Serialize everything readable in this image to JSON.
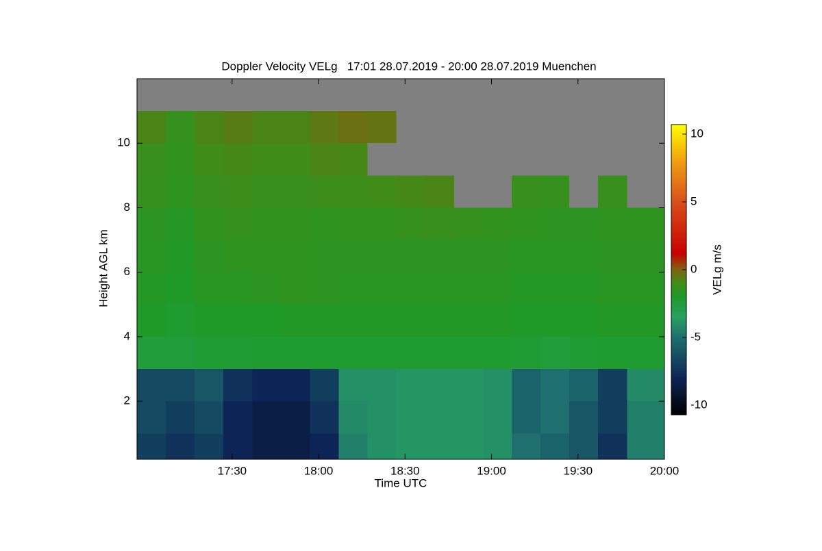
{
  "chart_data": {
    "type": "heatmap",
    "title": "Doppler Velocity VELg   17:01 28.07.2019 - 20:00 28.07.2019 Muenchen",
    "x_label": "Time UTC",
    "y_label": "Height AGL km",
    "colorbar_label": "VELg m/s",
    "xlim": [
      1017,
      1200
    ],
    "xticks": [
      {
        "value": 1050,
        "label": "17:30"
      },
      {
        "value": 1080,
        "label": "18:00"
      },
      {
        "value": 1110,
        "label": "18:30"
      },
      {
        "value": 1140,
        "label": "19:00"
      },
      {
        "value": 1170,
        "label": "19:30"
      },
      {
        "value": 1200,
        "label": "20:00"
      }
    ],
    "ylim": [
      0.2,
      12
    ],
    "yticks": [
      2,
      4,
      6,
      8,
      10
    ],
    "clim": [
      -10.7,
      10.7
    ],
    "cticks": [
      {
        "value": -10,
        "label": "-10"
      },
      {
        "value": -5,
        "label": "-5"
      },
      0,
      5,
      10
    ],
    "nodata_color": "#808080",
    "colorscale": [
      [
        -10.7,
        "#000000"
      ],
      [
        -8,
        "#0c2556"
      ],
      [
        -5,
        "#1e6f6e"
      ],
      [
        -3.5,
        "#27a060"
      ],
      [
        -2,
        "#1f9a28"
      ],
      [
        -1,
        "#3f8c18"
      ],
      [
        0,
        "#7d6410"
      ],
      [
        1.2,
        "#c80000"
      ],
      [
        5,
        "#d8501c"
      ],
      [
        8,
        "#f0a010"
      ],
      [
        10.7,
        "#ffff00"
      ]
    ],
    "xbins": [
      1017,
      1027,
      1037,
      1047,
      1057,
      1067,
      1077,
      1087,
      1097,
      1107,
      1117,
      1127,
      1137,
      1147,
      1157,
      1167,
      1177,
      1187,
      1200
    ],
    "ybins": [
      0.2,
      1,
      2,
      3,
      4,
      5,
      6,
      7,
      8,
      9,
      10,
      11,
      12
    ],
    "z": [
      [
        -7,
        -7.5,
        -7,
        -8,
        -8.5,
        -8.5,
        -8,
        -4.5,
        -4,
        -3.8,
        -3.8,
        -3.8,
        -4,
        -5,
        -5.5,
        -6,
        -7.5,
        -4.5
      ],
      [
        -6.5,
        -7,
        -6.5,
        -8,
        -8.5,
        -8.5,
        -7.5,
        -4.2,
        -4,
        -3.8,
        -3.8,
        -3.8,
        -4,
        -5.5,
        -5,
        -6,
        -7,
        -4.5
      ],
      [
        -6.5,
        -6.5,
        -6,
        -7.5,
        -8,
        -8,
        -7,
        -4,
        -4,
        -3.8,
        -3.8,
        -3.8,
        -4,
        -5.5,
        -5,
        -5.5,
        -7,
        -4.2
      ],
      [
        -2.5,
        -2.5,
        -2.3,
        -2.3,
        -2.2,
        -2.2,
        -2.2,
        -2.2,
        -2.2,
        -2.2,
        -2.2,
        -2.2,
        -2.2,
        -2.3,
        -2.5,
        -2.3,
        -2.2,
        -2.2
      ],
      [
        -2,
        -2.2,
        -2,
        -2,
        -2,
        -1.9,
        -1.9,
        -1.9,
        -1.9,
        -1.9,
        -1.9,
        -1.9,
        -1.9,
        -2,
        -2,
        -2,
        -1.9,
        -1.9
      ],
      [
        -1.8,
        -2,
        -1.7,
        -1.7,
        -1.6,
        -1.5,
        -1.6,
        -1.7,
        -1.7,
        -1.7,
        -1.7,
        -1.7,
        -1.7,
        -1.8,
        -1.8,
        -1.8,
        -1.7,
        -1.7
      ],
      [
        -1.7,
        -1.9,
        -1.6,
        -1.5,
        -1.5,
        -1.5,
        -1.6,
        -1.6,
        -1.6,
        -1.6,
        -1.6,
        -1.6,
        -1.6,
        -1.7,
        -1.7,
        -1.7,
        -1.6,
        -1.6
      ],
      [
        -1.6,
        -1.8,
        -1.4,
        -1.3,
        -1.4,
        -1.4,
        -1.5,
        -1.4,
        -1.4,
        -1.3,
        -1.2,
        -1.3,
        -1.4,
        -1.5,
        -1.6,
        -1.6,
        -1.5,
        -1.5
      ],
      [
        -1.3,
        -1.5,
        -1.2,
        -1.1,
        -1.2,
        -1.2,
        -1.1,
        -1.1,
        -1,
        -0.9,
        -0.8,
        null,
        null,
        -1.2,
        -1.3,
        null,
        -1.2,
        null
      ],
      [
        -1.2,
        -1.4,
        -1,
        -0.9,
        -1,
        -1,
        -0.8,
        -0.9,
        null,
        null,
        null,
        null,
        null,
        null,
        null,
        null,
        null,
        null
      ],
      [
        -0.8,
        -1.3,
        -0.8,
        -0.6,
        -0.8,
        -0.8,
        -0.5,
        -0.3,
        -0.4,
        null,
        null,
        null,
        null,
        null,
        null,
        null,
        null,
        null
      ],
      [
        null,
        null,
        null,
        null,
        null,
        null,
        null,
        null,
        null,
        null,
        null,
        null,
        null,
        null,
        null,
        null,
        null,
        null
      ]
    ]
  }
}
